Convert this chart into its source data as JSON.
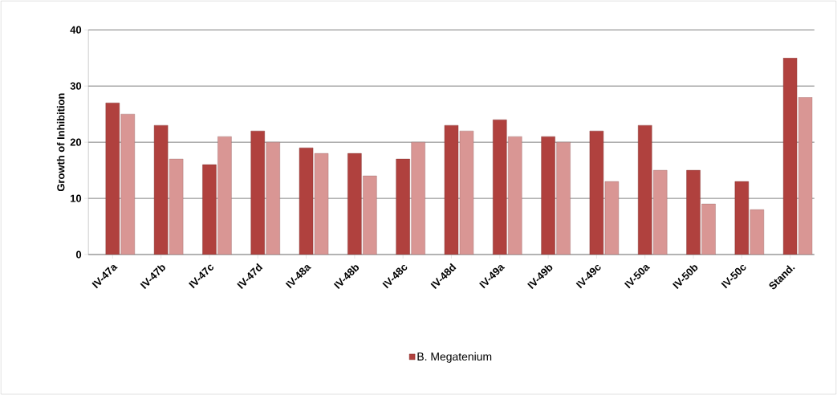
{
  "chart_data": {
    "type": "bar",
    "ylabel": "Growth of Inhibition",
    "categories": [
      "IV-47a",
      "IV-47b",
      "IV-47c",
      "IV-47d",
      "IV-48a",
      "IV-48b",
      "IV-48c",
      "IV-48d",
      "IV-49a",
      "IV-49b",
      "IV-49c",
      "IV-50a",
      "IV-50b",
      "IV-50c",
      "Stand."
    ],
    "series": [
      {
        "name": "B. Megatenium",
        "color": "#b0413e",
        "values": [
          27,
          23,
          16,
          22,
          19,
          18,
          17,
          23,
          24,
          21,
          22,
          23,
          15,
          13,
          35
        ]
      },
      {
        "color": "#d99694",
        "values": [
          25,
          17,
          21,
          20,
          18,
          14,
          20,
          22,
          21,
          20,
          13,
          15,
          9,
          8,
          28
        ]
      }
    ],
    "ylim": [
      0,
      40
    ],
    "yticks": [
      0,
      10,
      20,
      30,
      40
    ],
    "grid": "y",
    "legend": "bottom"
  }
}
